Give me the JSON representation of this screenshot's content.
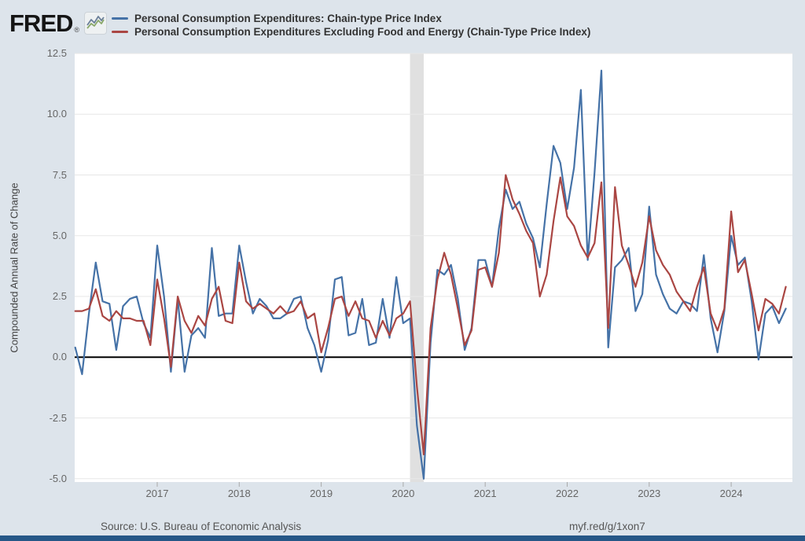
{
  "header": {
    "logo_text": "FRED",
    "logo_reg": "®"
  },
  "footer": {
    "source": "Source: U.S. Bureau of Economic Analysis",
    "permalink": "myf.red/g/1xon7"
  },
  "colors": {
    "background": "#dde4eb",
    "plot_background": "#ffffff",
    "gridline": "#e7e7e7",
    "zero_line": "#000000",
    "recession_band": "#e0e0e0",
    "series_blue": "#4572a7",
    "series_red": "#aa4643",
    "footer_bar": "#265787"
  },
  "chart_data": {
    "type": "line",
    "frequency": "monthly",
    "x_start": "2016-01",
    "x_end": "2024-09",
    "x_tick_labels": [
      "2017",
      "2018",
      "2019",
      "2020",
      "2021",
      "2022",
      "2023",
      "2024"
    ],
    "ylabel": "Compounded Annual Rate of Change",
    "y_ticks": [
      12.5,
      10.0,
      7.5,
      5.0,
      2.5,
      0.0,
      -2.5,
      -5.0
    ],
    "ylim": [
      -5.15,
      12.5
    ],
    "grid": "horizontal",
    "zero_line": true,
    "legend_position": "top",
    "recession_band": {
      "from": "2020-02",
      "to": "2020-04"
    },
    "series": [
      {
        "name": "Personal Consumption Expenditures: Chain-type Price Index",
        "color": "#4572a7",
        "values": [
          0.4,
          -0.7,
          1.8,
          3.9,
          2.3,
          2.2,
          0.3,
          2.1,
          2.4,
          2.5,
          1.4,
          0.8,
          4.6,
          2.5,
          -0.6,
          2.4,
          -0.6,
          0.9,
          1.2,
          0.8,
          4.5,
          1.7,
          1.8,
          1.8,
          4.6,
          3.1,
          1.8,
          2.4,
          2.1,
          1.6,
          1.6,
          1.8,
          2.4,
          2.5,
          1.2,
          0.5,
          -0.6,
          0.7,
          3.2,
          3.3,
          0.9,
          1.0,
          2.4,
          0.5,
          0.6,
          2.4,
          0.8,
          3.3,
          1.4,
          1.6,
          -2.8,
          -5.0,
          0.6,
          3.6,
          3.4,
          3.8,
          2.4,
          0.3,
          1.2,
          4.0,
          4.0,
          2.9,
          5.3,
          6.9,
          6.1,
          6.4,
          5.5,
          4.9,
          3.7,
          6.3,
          8.7,
          8.0,
          6.1,
          7.8,
          11.0,
          4.0,
          7.6,
          11.8,
          0.4,
          3.7,
          4.0,
          4.5,
          1.9,
          2.6,
          6.2,
          3.4,
          2.6,
          2.0,
          1.8,
          2.3,
          2.2,
          1.9,
          4.2,
          1.6,
          0.2,
          1.9,
          5.0,
          3.8,
          4.1,
          2.3,
          -0.1,
          1.8,
          2.1,
          1.4,
          2.0
        ]
      },
      {
        "name": "Personal Consumption Expenditures Excluding Food and Energy (Chain-Type Price Index)",
        "color": "#aa4643",
        "values": [
          1.9,
          1.9,
          2.0,
          2.8,
          1.7,
          1.5,
          1.9,
          1.6,
          1.6,
          1.5,
          1.5,
          0.5,
          3.2,
          1.6,
          -0.4,
          2.5,
          1.5,
          1.0,
          1.7,
          1.3,
          2.4,
          2.9,
          1.5,
          1.4,
          3.9,
          2.3,
          2.0,
          2.2,
          2.0,
          1.8,
          2.1,
          1.8,
          1.9,
          2.3,
          1.6,
          1.8,
          0.2,
          1.2,
          2.4,
          2.5,
          1.7,
          2.3,
          1.6,
          1.5,
          0.8,
          1.5,
          0.9,
          1.6,
          1.8,
          2.3,
          -1.2,
          -4.0,
          1.2,
          3.2,
          4.3,
          3.4,
          2.0,
          0.5,
          1.1,
          3.6,
          3.7,
          2.9,
          4.3,
          7.5,
          6.5,
          5.9,
          5.2,
          4.7,
          2.5,
          3.4,
          5.6,
          7.4,
          5.8,
          5.4,
          4.6,
          4.1,
          4.7,
          7.2,
          1.2,
          7.0,
          4.6,
          3.8,
          2.9,
          3.9,
          5.8,
          4.4,
          3.8,
          3.4,
          2.7,
          2.3,
          1.9,
          2.9,
          3.7,
          1.8,
          1.1,
          2.0,
          6.0,
          3.5,
          4.0,
          2.6,
          1.1,
          2.4,
          2.2,
          1.8,
          2.9
        ]
      }
    ]
  }
}
